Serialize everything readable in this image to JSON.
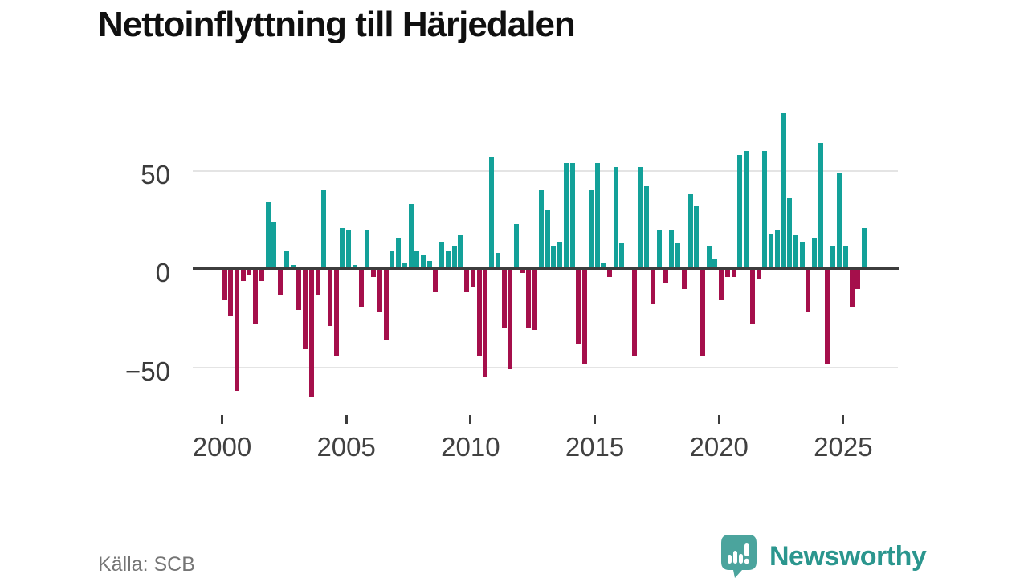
{
  "title": "Nettoinflyttning till Härjedalen",
  "source": "Källa: SCB",
  "branding": {
    "name": "Newsworthy"
  },
  "colors": {
    "positive": "#13a199",
    "negative": "#a50f4b",
    "axis": "#3d3d3d",
    "grid": "#e4e4e4",
    "brand_bubble": "#4ba49d",
    "brand_text": "#2b968e"
  },
  "chart_data": {
    "type": "bar",
    "title": "Nettoinflyttning till Härjedalen",
    "subtitle": "",
    "xlabel": "",
    "ylabel": "",
    "frequency": "quarterly",
    "period_start": "2000 Q1",
    "period_end": "2025 Q4",
    "grid": "horizontal",
    "ylim": [
      -68,
      80
    ],
    "y_ticks": [
      {
        "value": 50,
        "label": "50"
      },
      {
        "value": 0,
        "label": "0"
      },
      {
        "value": -50,
        "label": "−50"
      }
    ],
    "x_ticks": [
      {
        "year": 2000,
        "label": "2000"
      },
      {
        "year": 2005,
        "label": "2005"
      },
      {
        "year": 2010,
        "label": "2010"
      },
      {
        "year": 2015,
        "label": "2015"
      },
      {
        "year": 2020,
        "label": "2020"
      },
      {
        "year": 2025,
        "label": "2025"
      }
    ],
    "years": [
      2000,
      2001,
      2002,
      2003,
      2004,
      2005,
      2006,
      2007,
      2008,
      2009,
      2010,
      2011,
      2012,
      2013,
      2014,
      2015,
      2016,
      2017,
      2018,
      2019,
      2020,
      2021,
      2022,
      2023,
      2024,
      2025
    ],
    "series": [
      {
        "name": "Nettoinflyttning",
        "values": [
          -16,
          -24,
          -62,
          -6,
          -3,
          -28,
          -6,
          34,
          24,
          -13,
          9,
          2,
          -21,
          -41,
          -65,
          -13,
          40,
          -29,
          -44,
          21,
          20,
          2,
          -19,
          20,
          -4,
          -22,
          -36,
          9,
          16,
          3,
          33,
          9,
          7,
          4,
          -12,
          14,
          9,
          12,
          17,
          -12,
          -9,
          -44,
          -55,
          57,
          8,
          -30,
          -51,
          23,
          -2,
          -30,
          -31,
          40,
          30,
          12,
          14,
          54,
          54,
          -38,
          -48,
          40,
          54,
          3,
          -4,
          52,
          13,
          1,
          -44,
          52,
          42,
          -18,
          20,
          -7,
          20,
          13,
          -10,
          38,
          32,
          -44,
          12,
          5,
          -16,
          -4,
          -4,
          58,
          60,
          -28,
          -5,
          60,
          18,
          20,
          79,
          36,
          17,
          14,
          -22,
          16,
          64,
          -48,
          12,
          49,
          12,
          -19,
          -10,
          21
        ]
      }
    ]
  }
}
